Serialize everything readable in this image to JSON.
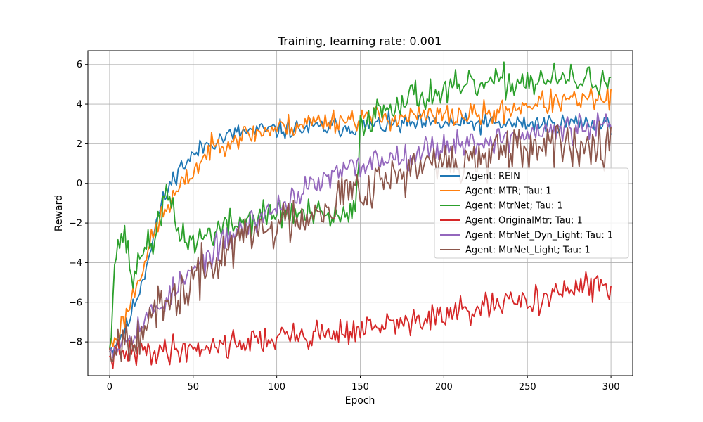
{
  "chart_data": {
    "type": "line",
    "title": "Training, learning rate: 0.001",
    "xlabel": "Epoch",
    "ylabel": "Reward",
    "xlim": [
      -13,
      313
    ],
    "ylim": [
      -9.7,
      6.7
    ],
    "xticks": [
      0,
      50,
      100,
      150,
      200,
      250,
      300
    ],
    "yticks": [
      -8,
      -6,
      -4,
      -2,
      0,
      2,
      4,
      6
    ],
    "grid": true,
    "legend_position": "center-right",
    "series": [
      {
        "name": "Agent: REIN",
        "color": "#1f77b4",
        "seed": 11,
        "noise": 0.25,
        "anchors": [
          [
            0,
            -8.5
          ],
          [
            10,
            -7.3
          ],
          [
            20,
            -4.8
          ],
          [
            30,
            -1.3
          ],
          [
            40,
            0.6
          ],
          [
            50,
            1.4
          ],
          [
            60,
            2.1
          ],
          [
            80,
            2.6
          ],
          [
            100,
            2.7
          ],
          [
            150,
            2.9
          ],
          [
            200,
            3.0
          ],
          [
            250,
            3.0
          ],
          [
            300,
            3.1
          ]
        ]
      },
      {
        "name": "Agent: MTR; Tau: 1",
        "color": "#ff7f0e",
        "seed": 23,
        "noise": 0.3,
        "anchors": [
          [
            0,
            -8.4
          ],
          [
            10,
            -6.6
          ],
          [
            20,
            -4.1
          ],
          [
            30,
            -1.8
          ],
          [
            40,
            -0.5
          ],
          [
            50,
            0.6
          ],
          [
            60,
            1.7
          ],
          [
            70,
            2.2
          ],
          [
            90,
            2.6
          ],
          [
            120,
            3.1
          ],
          [
            150,
            3.3
          ],
          [
            200,
            3.4
          ],
          [
            230,
            3.5
          ],
          [
            250,
            4.0
          ],
          [
            300,
            4.3
          ]
        ]
      },
      {
        "name": "Agent: MtrNet; Tau: 1",
        "color": "#2ca02c",
        "seed": 37,
        "noise": 0.4,
        "anchors": [
          [
            0,
            -8.3
          ],
          [
            3,
            -4.0
          ],
          [
            7,
            -2.5
          ],
          [
            10,
            -3.0
          ],
          [
            14,
            -5.0
          ],
          [
            20,
            -3.0
          ],
          [
            25,
            -3.4
          ],
          [
            30,
            -1.5
          ],
          [
            35,
            -0.6
          ],
          [
            40,
            -2.3
          ],
          [
            50,
            -3.0
          ],
          [
            60,
            -2.5
          ],
          [
            80,
            -1.9
          ],
          [
            100,
            -1.5
          ],
          [
            120,
            -1.6
          ],
          [
            140,
            -1.8
          ],
          [
            147,
            -1.5
          ],
          [
            150,
            3.0
          ],
          [
            160,
            3.6
          ],
          [
            175,
            4.3
          ],
          [
            200,
            4.6
          ],
          [
            225,
            5.0
          ],
          [
            250,
            5.2
          ],
          [
            275,
            5.2
          ],
          [
            300,
            5.2
          ]
        ]
      },
      {
        "name": "Agent: OriginalMtr; Tau: 1",
        "color": "#d62728",
        "seed": 41,
        "noise": 0.35,
        "anchors": [
          [
            0,
            -8.7
          ],
          [
            20,
            -8.5
          ],
          [
            50,
            -8.3
          ],
          [
            100,
            -7.8
          ],
          [
            150,
            -7.4
          ],
          [
            200,
            -6.7
          ],
          [
            250,
            -5.9
          ],
          [
            275,
            -5.4
          ],
          [
            300,
            -5.1
          ]
        ]
      },
      {
        "name": "Agent: MtrNet_Dyn_Light; Tau: 1",
        "color": "#9467bd",
        "seed": 53,
        "noise": 0.35,
        "anchors": [
          [
            0,
            -8.5
          ],
          [
            20,
            -7.0
          ],
          [
            40,
            -5.3
          ],
          [
            60,
            -3.6
          ],
          [
            80,
            -2.2
          ],
          [
            100,
            -1.2
          ],
          [
            120,
            -0.2
          ],
          [
            140,
            0.6
          ],
          [
            160,
            1.2
          ],
          [
            180,
            1.5
          ],
          [
            200,
            1.9
          ],
          [
            230,
            2.2
          ],
          [
            260,
            2.6
          ],
          [
            300,
            2.9
          ]
        ]
      },
      {
        "name": "Agent: MtrNet_Light; Tau: 1",
        "color": "#8c564b",
        "seed": 67,
        "noise": 0.6,
        "anchors": [
          [
            0,
            -8.3
          ],
          [
            20,
            -7.2
          ],
          [
            40,
            -5.8
          ],
          [
            60,
            -4.2
          ],
          [
            80,
            -2.7
          ],
          [
            100,
            -2.1
          ],
          [
            120,
            -1.4
          ],
          [
            140,
            -0.6
          ],
          [
            160,
            0.2
          ],
          [
            180,
            0.6
          ],
          [
            200,
            1.0
          ],
          [
            230,
            1.3
          ],
          [
            260,
            1.7
          ],
          [
            300,
            2.4
          ]
        ]
      }
    ]
  }
}
